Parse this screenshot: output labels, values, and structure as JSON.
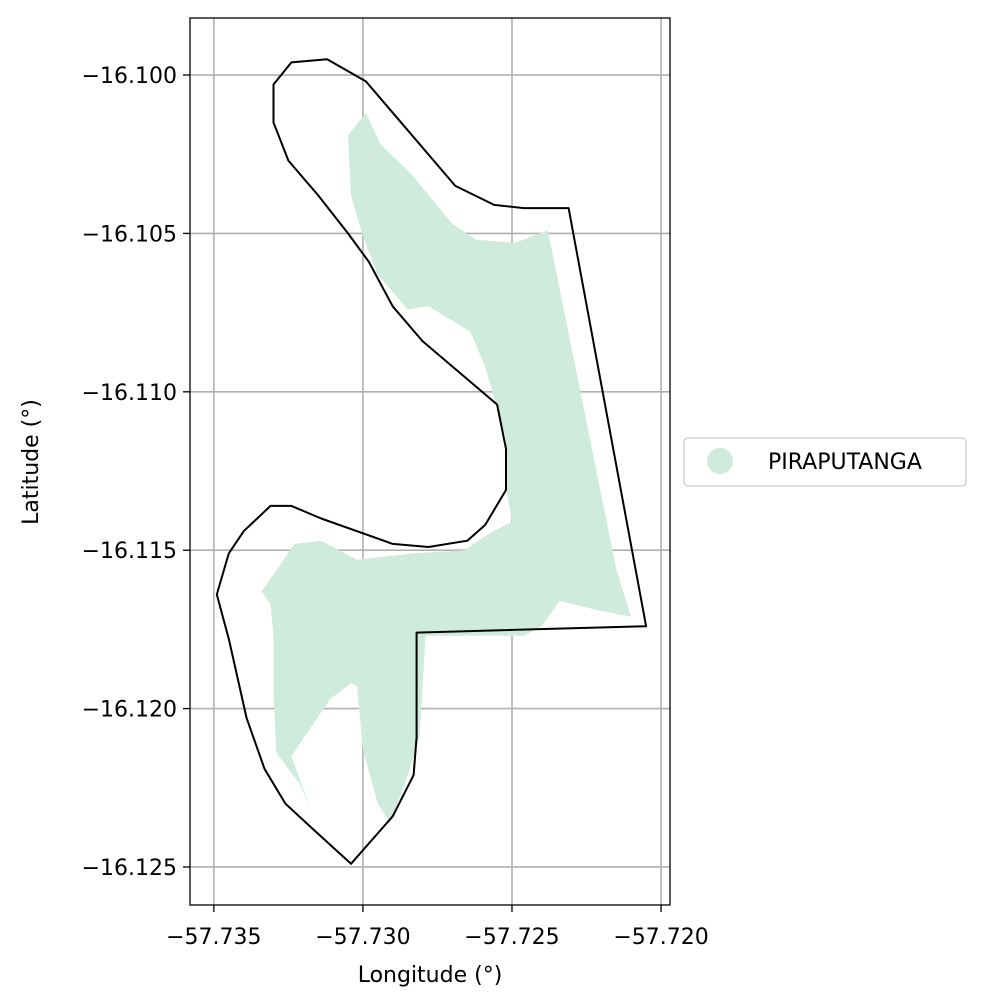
{
  "map": {
    "xlabel": "Longitude (°)",
    "ylabel": "Latitude (°)",
    "xlim": [
      -57.7358,
      -57.7197
    ],
    "ylim": [
      -16.1262,
      -16.0982
    ],
    "grid": true,
    "x_ticks": [
      {
        "value": -57.735,
        "label": "−57.735"
      },
      {
        "value": -57.73,
        "label": "−57.730"
      },
      {
        "value": -57.725,
        "label": "−57.725"
      },
      {
        "value": -57.72,
        "label": "−57.720"
      }
    ],
    "y_ticks": [
      {
        "value": -16.1,
        "label": "−16.100"
      },
      {
        "value": -16.105,
        "label": "−16.105"
      },
      {
        "value": -16.11,
        "label": "−16.110"
      },
      {
        "value": -16.115,
        "label": "−16.115"
      },
      {
        "value": -16.12,
        "label": "−16.120"
      },
      {
        "value": -16.125,
        "label": "−16.125"
      }
    ],
    "legend": {
      "placement": "center-right outside",
      "entries": [
        {
          "label": "PIRAPUTANGA",
          "color": "#cfebdd",
          "marker": "circle"
        }
      ]
    },
    "colors": {
      "fill": "#cfebdd",
      "boundary": "#000000",
      "grid": "#b0b0b0",
      "axes": "#000000"
    },
    "boundary_lonlat": [
      [
        -57.7312,
        -16.0995
      ],
      [
        -57.7299,
        -16.1002
      ],
      [
        -57.7289,
        -16.1013
      ],
      [
        -57.7269,
        -16.1035
      ],
      [
        -57.7256,
        -16.1041
      ],
      [
        -57.7246,
        -16.1042
      ],
      [
        -57.7231,
        -16.1042
      ],
      [
        -57.7205,
        -16.1174
      ],
      [
        -57.7282,
        -16.1176
      ],
      [
        -57.7282,
        -16.1209
      ],
      [
        -57.7283,
        -16.1221
      ],
      [
        -57.729,
        -16.1234
      ],
      [
        -57.7304,
        -16.1249
      ],
      [
        -57.7318,
        -16.1237
      ],
      [
        -57.7326,
        -16.123
      ],
      [
        -57.7333,
        -16.1219
      ],
      [
        -57.7339,
        -16.1203
      ],
      [
        -57.7345,
        -16.1178
      ],
      [
        -57.7349,
        -16.1164
      ],
      [
        -57.7345,
        -16.1151
      ],
      [
        -57.734,
        -16.1144
      ],
      [
        -57.7331,
        -16.1136
      ],
      [
        -57.7324,
        -16.1136
      ],
      [
        -57.7314,
        -16.114
      ],
      [
        -57.729,
        -16.1148
      ],
      [
        -57.7278,
        -16.1149
      ],
      [
        -57.7265,
        -16.1147
      ],
      [
        -57.7259,
        -16.1142
      ],
      [
        -57.7252,
        -16.1131
      ],
      [
        -57.7252,
        -16.1118
      ],
      [
        -57.7255,
        -16.1104
      ],
      [
        -57.728,
        -16.1084
      ],
      [
        -57.729,
        -16.1073
      ],
      [
        -57.7298,
        -16.1059
      ],
      [
        -57.7305,
        -16.105
      ],
      [
        -57.7315,
        -16.1038
      ],
      [
        -57.7325,
        -16.1027
      ],
      [
        -57.733,
        -16.1015
      ],
      [
        -57.733,
        -16.1003
      ],
      [
        -57.7324,
        -16.0996
      ]
    ],
    "fill_lonlat": [
      [
        -57.7299,
        -16.1012
      ],
      [
        -57.7294,
        -16.1022
      ],
      [
        -57.7284,
        -16.1031
      ],
      [
        -57.727,
        -16.1047
      ],
      [
        -57.7262,
        -16.1052
      ],
      [
        -57.7249,
        -16.1053
      ],
      [
        -57.7238,
        -16.1049
      ],
      [
        -57.7215,
        -16.1156
      ],
      [
        -57.721,
        -16.1171
      ],
      [
        -57.7221,
        -16.1169
      ],
      [
        -57.7234,
        -16.1166
      ],
      [
        -57.724,
        -16.1174
      ],
      [
        -57.7246,
        -16.1177
      ],
      [
        -57.7279,
        -16.1177
      ],
      [
        -57.7281,
        -16.1209
      ],
      [
        -57.7286,
        -16.1224
      ],
      [
        -57.7291,
        -16.1236
      ],
      [
        -57.7295,
        -16.123
      ],
      [
        -57.73,
        -16.1213
      ],
      [
        -57.7302,
        -16.1193
      ],
      [
        -57.7304,
        -16.1192
      ],
      [
        -57.7311,
        -16.1197
      ],
      [
        -57.7324,
        -16.1215
      ],
      [
        -57.7317,
        -16.1233
      ],
      [
        -57.7321,
        -16.1224
      ],
      [
        -57.7329,
        -16.1214
      ],
      [
        -57.733,
        -16.1196
      ],
      [
        -57.733,
        -16.1177
      ],
      [
        -57.7331,
        -16.1167
      ],
      [
        -57.7334,
        -16.1163
      ],
      [
        -57.7328,
        -16.1155
      ],
      [
        -57.7323,
        -16.1148
      ],
      [
        -57.7314,
        -16.1147
      ],
      [
        -57.7302,
        -16.1153
      ],
      [
        -57.7283,
        -16.1151
      ],
      [
        -57.7266,
        -16.115
      ],
      [
        -57.7258,
        -16.1145
      ],
      [
        -57.725,
        -16.1141
      ],
      [
        -57.7252,
        -16.113
      ],
      [
        -57.7252,
        -16.1115
      ],
      [
        -57.7259,
        -16.1092
      ],
      [
        -57.7264,
        -16.1081
      ],
      [
        -57.7278,
        -16.1073
      ],
      [
        -57.7285,
        -16.1074
      ],
      [
        -57.7295,
        -16.1063
      ],
      [
        -57.73,
        -16.1051
      ],
      [
        -57.7304,
        -16.1038
      ],
      [
        -57.7305,
        -16.1019
      ]
    ]
  }
}
